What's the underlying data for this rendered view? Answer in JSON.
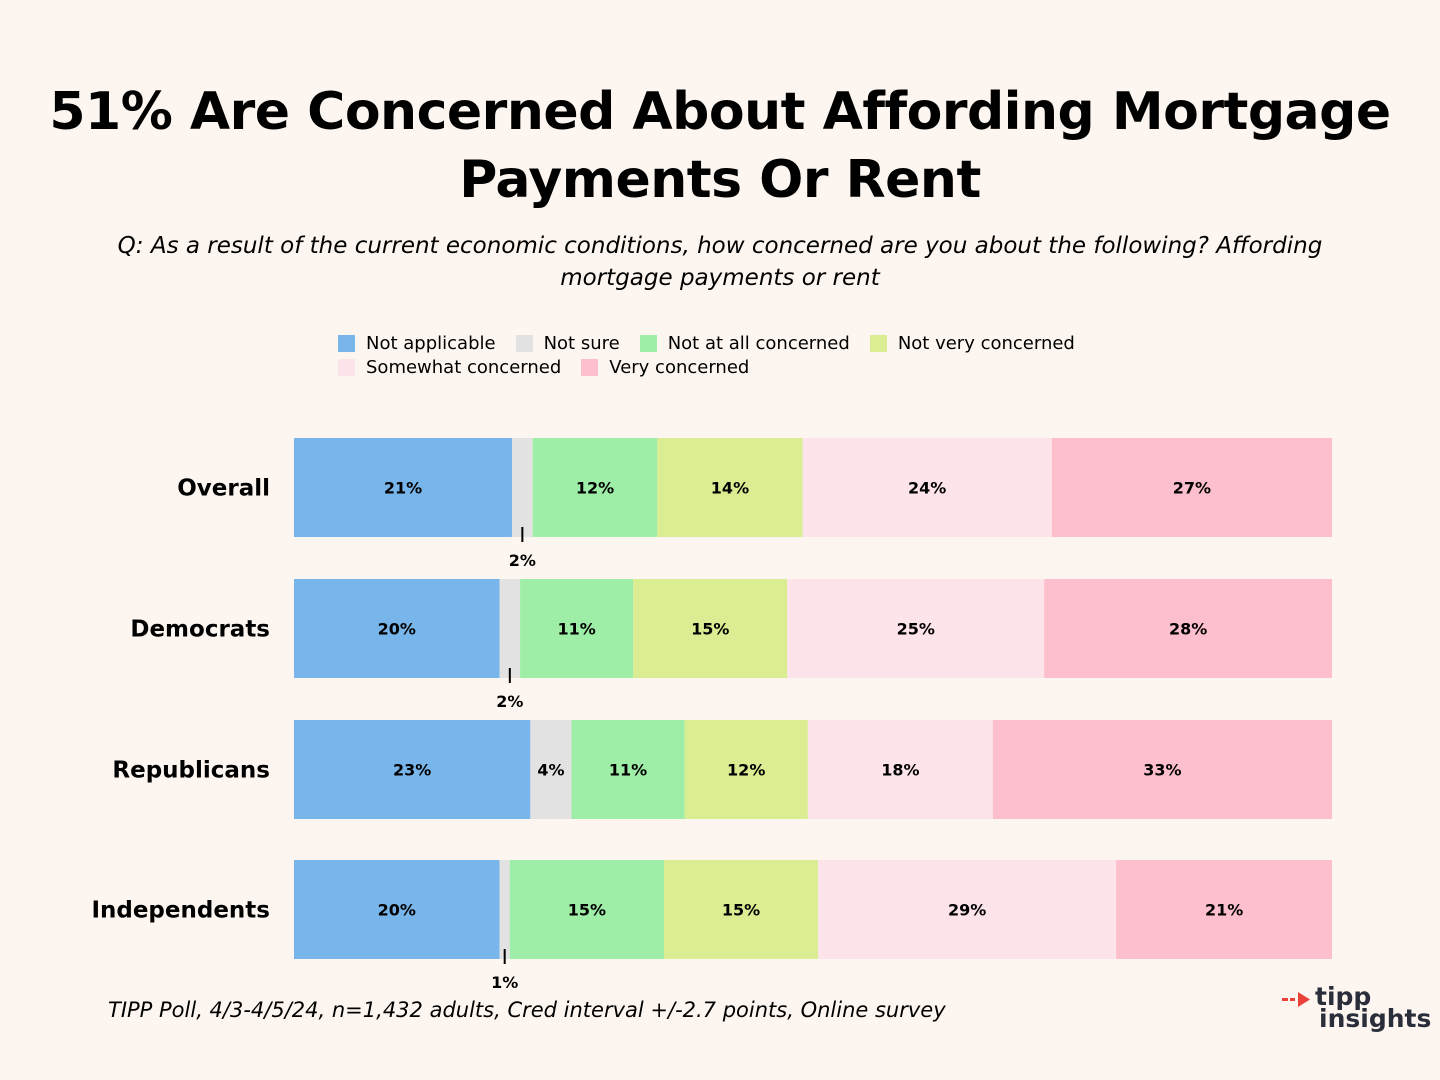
{
  "chart_data": {
    "type": "bar",
    "orientation": "horizontal",
    "stacked": true,
    "normalized": true,
    "title_line1": "51% Are Concerned About Affording Mortgage",
    "title_line2": "Payments Or Rent",
    "subtitle_line1": "Q: As a result of the current economic conditions, how concerned are you about the following? Affording",
    "subtitle_line2": "mortgage payments or rent",
    "categories": [
      "Overall",
      "Democrats",
      "Republicans",
      "Independents"
    ],
    "series": [
      {
        "name": "Not applicable",
        "color": "#78b5ea",
        "values": [
          21,
          20,
          23,
          20
        ]
      },
      {
        "name": "Not sure",
        "color": "#e2e2e2",
        "values": [
          2,
          2,
          4,
          1
        ]
      },
      {
        "name": "Not at all concerned",
        "color": "#9eeea8",
        "values": [
          12,
          11,
          11,
          15
        ]
      },
      {
        "name": "Not very concerned",
        "color": "#daed92",
        "values": [
          14,
          15,
          12,
          15
        ]
      },
      {
        "name": "Somewhat concerned",
        "color": "#fde4ea",
        "values": [
          24,
          25,
          18,
          29
        ]
      },
      {
        "name": "Very concerned",
        "color": "#fdbfcd",
        "values": [
          27,
          28,
          33,
          21
        ]
      }
    ],
    "legend_position": "top",
    "grid": false,
    "data_labels": true
  },
  "footer": {
    "source": "TIPP Poll, 4/3-4/5/24, n=1,432 adults, Cred interval +/-2.7 points, Online survey"
  },
  "logo": {
    "line1": "tipp",
    "line2": "insights",
    "accent_color": "#e8423a"
  }
}
